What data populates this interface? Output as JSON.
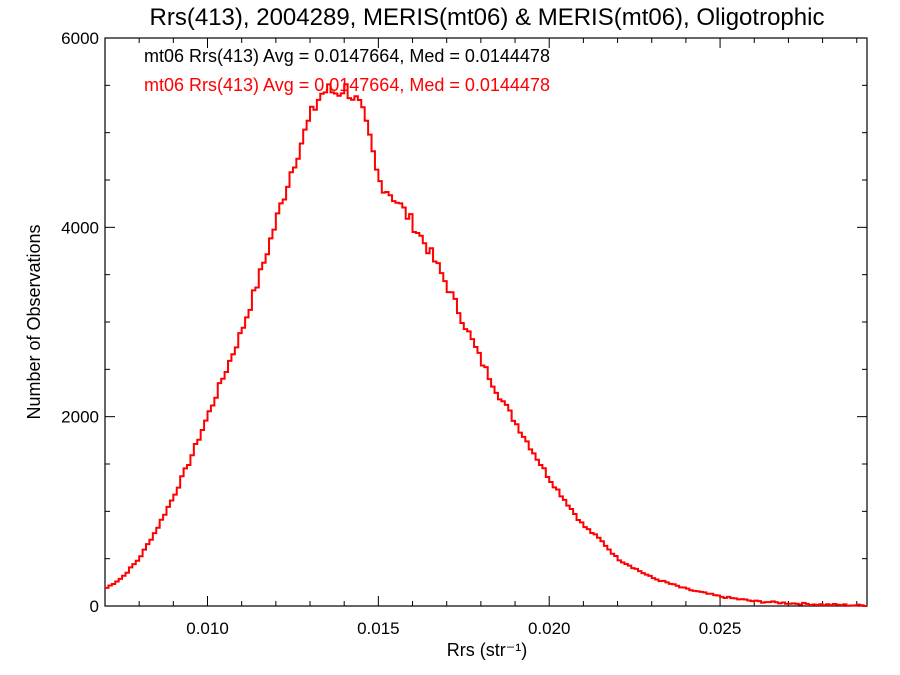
{
  "chart_data": {
    "type": "line",
    "style": "step-histogram",
    "title": "Rrs(413), 2004289, MERIS(mt06) & MERIS(mt06), Oligotrophic",
    "xlabel": "Rrs (str⁻¹)",
    "ylabel": "Number of Observations",
    "xlim": [
      0.007,
      0.0293
    ],
    "ylim": [
      0,
      6000
    ],
    "xticks": [
      0.01,
      0.015,
      0.02,
      0.025
    ],
    "xtick_labels": [
      "0.010",
      "0.015",
      "0.020",
      "0.025"
    ],
    "yticks": [
      0,
      2000,
      4000,
      6000
    ],
    "ytick_labels": [
      "0",
      "2000",
      "4000",
      "6000"
    ],
    "grid": false,
    "annotations": [
      {
        "text": "mt06 Rrs(413) Avg = 0.0147664, Med = 0.0144478",
        "color": "#000000"
      },
      {
        "text": "mt06 Rrs(413) Avg = 0.0147664, Med = 0.0144478",
        "color": "#ff0000"
      }
    ],
    "series": [
      {
        "color": "#ff0000",
        "x": [
          0.007,
          0.0075,
          0.008,
          0.0085,
          0.009,
          0.0095,
          0.01,
          0.0105,
          0.011,
          0.0115,
          0.012,
          0.0125,
          0.013,
          0.0133,
          0.0135,
          0.0138,
          0.014,
          0.0142,
          0.0145,
          0.0148,
          0.015,
          0.0155,
          0.016,
          0.0165,
          0.017,
          0.0175,
          0.018,
          0.0185,
          0.019,
          0.0195,
          0.02,
          0.0205,
          0.021,
          0.0215,
          0.022,
          0.023,
          0.024,
          0.025,
          0.026,
          0.027,
          0.028,
          0.0293
        ],
        "y": [
          180,
          300,
          500,
          800,
          1150,
          1550,
          2000,
          2450,
          2900,
          3450,
          4050,
          4650,
          5150,
          5400,
          5450,
          5420,
          5480,
          5420,
          5250,
          4850,
          4500,
          4300,
          4050,
          3750,
          3400,
          3000,
          2600,
          2250,
          1950,
          1650,
          1350,
          1100,
          850,
          700,
          500,
          300,
          180,
          100,
          50,
          30,
          15,
          5
        ]
      }
    ]
  }
}
